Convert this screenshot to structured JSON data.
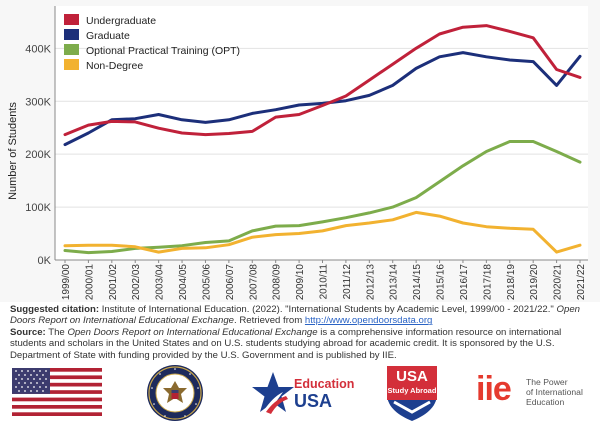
{
  "chart_data": {
    "type": "line",
    "ylabel": "Number of Students",
    "ylim": [
      0,
      480000
    ],
    "yticks": [
      0,
      100000,
      200000,
      300000,
      400000
    ],
    "ytick_labels": [
      "0K",
      "100K",
      "200K",
      "300K",
      "400K"
    ],
    "grid": "horizontal",
    "legend_position": "top-left",
    "categories": [
      "1999/00",
      "2000/01",
      "2001/02",
      "2002/03",
      "2003/04",
      "2004/05",
      "2005/06",
      "2006/07",
      "2007/08",
      "2008/09",
      "2009/10",
      "2010/11",
      "2011/12",
      "2012/13",
      "2013/14",
      "2014/15",
      "2015/16",
      "2016/17",
      "2017/18",
      "2018/19",
      "2019/20",
      "2020/21",
      "2021/22"
    ],
    "series": [
      {
        "name": "Undergraduate",
        "color": "#c0213a",
        "values": [
          237000,
          255000,
          262000,
          261000,
          249000,
          240000,
          237000,
          239000,
          243000,
          270000,
          275000,
          292000,
          310000,
          340000,
          370000,
          400000,
          427000,
          440000,
          443000,
          432000,
          420000,
          360000,
          345000
        ]
      },
      {
        "name": "Graduate",
        "color": "#1c2f7a",
        "values": [
          218000,
          240000,
          265000,
          267000,
          275000,
          265000,
          260000,
          265000,
          277000,
          284000,
          293000,
          296000,
          301000,
          311000,
          330000,
          362000,
          384000,
          392000,
          384000,
          378000,
          375000,
          330000,
          385000
        ]
      },
      {
        "name": "Optional Practical Training (OPT)",
        "color": "#7dac4b",
        "values": [
          18000,
          14000,
          16000,
          22000,
          24000,
          27000,
          33000,
          36000,
          55000,
          64000,
          65000,
          72000,
          80000,
          89000,
          100000,
          118000,
          148000,
          178000,
          205000,
          224000,
          224000,
          205000,
          185000
        ]
      },
      {
        "name": "Non-Degree",
        "color": "#f2b230",
        "values": [
          27000,
          28000,
          28000,
          25000,
          15000,
          22000,
          23000,
          29000,
          43000,
          48000,
          50000,
          55000,
          65000,
          70000,
          76000,
          90000,
          83000,
          70000,
          63000,
          60000,
          58000,
          15000,
          28000
        ]
      }
    ]
  },
  "citation": {
    "label": "Suggested citation:",
    "text": "Institute of International Education. (2022). \"International Students by Academic Level, 1999/00 - 2021/22.\"",
    "report_title": "Open Doors Report on International Educational Exchange",
    "retrieved": ". Retrieved from",
    "url": "http://www.opendoorsdata.org"
  },
  "source": {
    "label": "Source:",
    "the": "The",
    "report_title": "Open Doors Report on International Educational Exchange",
    "text": "is a comprehensive information resource on international students and scholars in the United States and on U.S. students studying abroad for academic credit. It is sponsored by the U.S. Department of State with funding provided by the U.S. Government and is published by IIE."
  },
  "logos": {
    "education_usa_line1": "Education",
    "education_usa_line2": "USA",
    "usa_study_abroad_line1": "USA",
    "usa_study_abroad_line2": "Study Abroad",
    "iie_mark": "iie",
    "iie_tagline": [
      "The Power",
      "of International",
      "Education"
    ]
  }
}
